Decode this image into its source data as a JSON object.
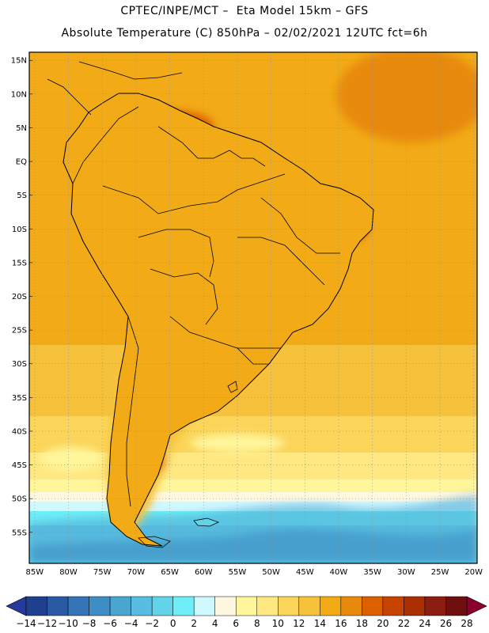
{
  "header": {
    "line1": "CPTEC/INPE/MCT –  Eta Model 15km – GFS",
    "line2": "Absolute Temperature (C) 850hPa – 02/02/2021 12UTC fct=6h"
  },
  "map": {
    "lat_labels": [
      "15N",
      "10N",
      "5N",
      "EQ",
      "5S",
      "10S",
      "15S",
      "20S",
      "25S",
      "30S",
      "35S",
      "40S",
      "45S",
      "50S",
      "55S"
    ],
    "lon_labels": [
      "85W",
      "80W",
      "75W",
      "70W",
      "65W",
      "60W",
      "55W",
      "50W",
      "45W",
      "40W",
      "35W",
      "30W",
      "25W",
      "20W"
    ]
  },
  "colorbar": {
    "labels": [
      "-14",
      "-12",
      "-10",
      "-8",
      "-6",
      "-4",
      "-2",
      "0",
      "2",
      "4",
      "6",
      "8",
      "10",
      "12",
      "14",
      "16",
      "18",
      "20",
      "22",
      "24",
      "26",
      "28"
    ],
    "colors": [
      "#1f3f8f",
      "#2b5aa5",
      "#3473b5",
      "#3e8dc4",
      "#4aa6d1",
      "#58bde0",
      "#63d3ea",
      "#6feef7",
      "#cff8ff",
      "#fff8e0",
      "#fff59a",
      "#ffe881",
      "#fbd55a",
      "#f6c23c",
      "#f2ab17",
      "#e88a0c",
      "#dc5f00",
      "#c64400",
      "#a92e00",
      "#8b1e10",
      "#6e1010"
    ],
    "under_color": "#253a9a",
    "over_color": "#8a0030"
  }
}
